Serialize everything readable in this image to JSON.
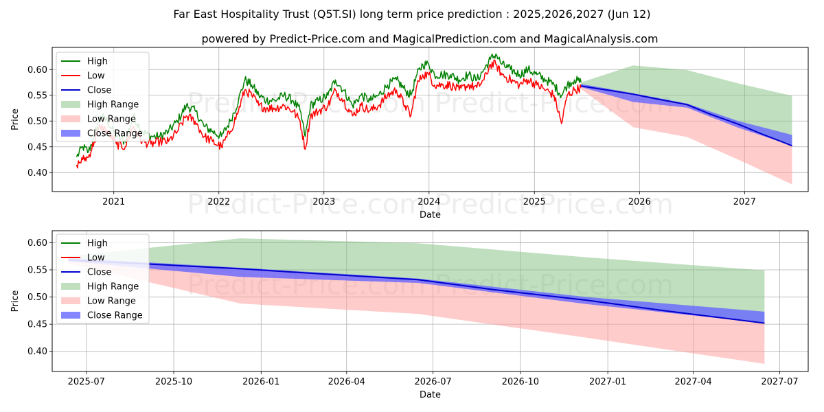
{
  "title": "Far East Hospitality Trust (Q5T.SI) long term price prediction : 2025,2026,2027 (Jun 12)",
  "subtitle": "powered by Predict-Price.com and MagicalPrediction.com and MagicalAnalysis.com",
  "watermark": "Predict-Price.com",
  "colors": {
    "high": "#008000",
    "low": "#ff0000",
    "close": "#0000cc",
    "high_range": "#80c080",
    "low_range": "#ff9a9a",
    "close_range": "#6666ff"
  },
  "chart_data": [
    {
      "type": "line",
      "xlabel": "Date",
      "ylabel": "Price",
      "xlim": [
        "2020-06-01",
        "2027-08-10"
      ],
      "ylim": [
        0.363,
        0.643
      ],
      "grid": true,
      "legend_position": "top-left",
      "x_ticks": [
        "2021",
        "2022",
        "2023",
        "2024",
        "2025",
        "2026",
        "2027"
      ],
      "y_ticks": [
        "0.40",
        "0.45",
        "0.50",
        "0.55",
        "0.60"
      ],
      "legend": [
        "High",
        "Low",
        "Close",
        "High Range",
        "Low Range",
        "Close Range"
      ],
      "series": [
        {
          "name": "High",
          "x": [
            "2020-08-25",
            "2020-09-15",
            "2020-10-05",
            "2020-10-25",
            "2020-11-15",
            "2020-12-10",
            "2021-01-10",
            "2021-02-10",
            "2021-03-10",
            "2021-04-10",
            "2021-05-10",
            "2021-06-10",
            "2021-07-10",
            "2021-08-10",
            "2021-09-10",
            "2021-10-10",
            "2021-11-10",
            "2021-12-10",
            "2022-01-10",
            "2022-02-10",
            "2022-03-10",
            "2022-04-01",
            "2022-04-25",
            "2022-05-20",
            "2022-06-15",
            "2022-07-15",
            "2022-08-15",
            "2022-09-15",
            "2022-10-10",
            "2022-10-28",
            "2022-11-15",
            "2022-12-15",
            "2023-01-15",
            "2023-02-10",
            "2023-03-10",
            "2023-04-10",
            "2023-05-10",
            "2023-06-10",
            "2023-07-10",
            "2023-08-10",
            "2023-09-10",
            "2023-10-10",
            "2023-10-30",
            "2023-11-20",
            "2023-12-10",
            "2023-12-31",
            "2024-01-20",
            "2024-02-15",
            "2024-03-15",
            "2024-04-15",
            "2024-05-15",
            "2024-06-15",
            "2024-07-10",
            "2024-08-01",
            "2024-08-20",
            "2024-09-10",
            "2024-10-10",
            "2024-11-10",
            "2024-12-10",
            "2025-01-10",
            "2025-02-10",
            "2025-03-10",
            "2025-04-05",
            "2025-04-25",
            "2025-05-20",
            "2025-06-12"
          ],
          "values": [
            0.43,
            0.45,
            0.44,
            0.47,
            0.51,
            0.5,
            0.47,
            0.46,
            0.51,
            0.48,
            0.47,
            0.47,
            0.48,
            0.5,
            0.53,
            0.52,
            0.49,
            0.48,
            0.47,
            0.5,
            0.54,
            0.58,
            0.57,
            0.55,
            0.54,
            0.54,
            0.55,
            0.54,
            0.52,
            0.47,
            0.53,
            0.54,
            0.55,
            0.58,
            0.56,
            0.53,
            0.55,
            0.54,
            0.55,
            0.57,
            0.58,
            0.56,
            0.55,
            0.59,
            0.61,
            0.61,
            0.59,
            0.59,
            0.59,
            0.58,
            0.59,
            0.58,
            0.6,
            0.62,
            0.63,
            0.61,
            0.6,
            0.59,
            0.6,
            0.59,
            0.58,
            0.57,
            0.55,
            0.57,
            0.58,
            0.575
          ]
        },
        {
          "name": "Low",
          "x": [
            "2020-08-25",
            "2020-09-15",
            "2020-10-05",
            "2020-10-25",
            "2020-11-15",
            "2020-12-10",
            "2021-01-10",
            "2021-02-10",
            "2021-03-10",
            "2021-04-10",
            "2021-05-10",
            "2021-06-10",
            "2021-07-10",
            "2021-08-10",
            "2021-09-10",
            "2021-10-10",
            "2021-11-10",
            "2021-12-10",
            "2022-01-10",
            "2022-02-10",
            "2022-03-10",
            "2022-04-01",
            "2022-04-25",
            "2022-05-20",
            "2022-06-15",
            "2022-07-15",
            "2022-08-15",
            "2022-09-15",
            "2022-10-10",
            "2022-10-28",
            "2022-11-15",
            "2022-12-15",
            "2023-01-15",
            "2023-02-10",
            "2023-03-10",
            "2023-04-10",
            "2023-05-10",
            "2023-06-10",
            "2023-07-10",
            "2023-08-10",
            "2023-09-10",
            "2023-10-10",
            "2023-10-30",
            "2023-11-20",
            "2023-12-10",
            "2023-12-31",
            "2024-01-20",
            "2024-02-15",
            "2024-03-15",
            "2024-04-15",
            "2024-05-15",
            "2024-06-15",
            "2024-07-10",
            "2024-08-01",
            "2024-08-20",
            "2024-09-10",
            "2024-10-10",
            "2024-11-10",
            "2024-12-10",
            "2025-01-10",
            "2025-02-10",
            "2025-03-10",
            "2025-04-05",
            "2025-04-25",
            "2025-05-20",
            "2025-06-12"
          ],
          "values": [
            0.415,
            0.425,
            0.43,
            0.46,
            0.49,
            0.48,
            0.455,
            0.45,
            0.49,
            0.46,
            0.455,
            0.46,
            0.46,
            0.48,
            0.51,
            0.5,
            0.47,
            0.46,
            0.45,
            0.48,
            0.52,
            0.56,
            0.55,
            0.53,
            0.525,
            0.525,
            0.53,
            0.52,
            0.5,
            0.445,
            0.51,
            0.52,
            0.53,
            0.56,
            0.54,
            0.51,
            0.53,
            0.52,
            0.53,
            0.55,
            0.56,
            0.53,
            0.51,
            0.57,
            0.59,
            0.59,
            0.57,
            0.57,
            0.57,
            0.56,
            0.57,
            0.565,
            0.58,
            0.61,
            0.61,
            0.59,
            0.58,
            0.57,
            0.58,
            0.57,
            0.56,
            0.55,
            0.495,
            0.55,
            0.56,
            0.565
          ]
        },
        {
          "name": "Close",
          "x": [
            "2025-06-12",
            "2025-09-01",
            "2025-12-10",
            "2026-03-01",
            "2026-06-15",
            "2026-09-01",
            "2026-12-10",
            "2027-03-01",
            "2027-06-15"
          ],
          "values": [
            0.568,
            0.561,
            0.552,
            0.543,
            0.532,
            0.514,
            0.494,
            0.475,
            0.452
          ]
        }
      ],
      "bands": [
        {
          "name": "High Range",
          "x": [
            "2025-06-12",
            "2025-12-10",
            "2026-06-15",
            "2026-12-10",
            "2027-06-15"
          ],
          "lower": [
            0.568,
            0.552,
            0.532,
            0.494,
            0.452
          ],
          "upper": [
            0.575,
            0.608,
            0.599,
            0.573,
            0.549
          ]
        },
        {
          "name": "Low Range",
          "x": [
            "2025-06-12",
            "2025-12-10",
            "2026-06-15",
            "2026-12-10",
            "2027-06-15"
          ],
          "lower": [
            0.562,
            0.488,
            0.469,
            0.425,
            0.377
          ],
          "upper": [
            0.568,
            0.552,
            0.532,
            0.494,
            0.452
          ]
        },
        {
          "name": "Close Range",
          "x": [
            "2025-06-12",
            "2025-12-10",
            "2026-06-15",
            "2026-12-10",
            "2027-06-15"
          ],
          "lower": [
            0.566,
            0.537,
            0.526,
            0.487,
            0.452
          ],
          "upper": [
            0.572,
            0.554,
            0.534,
            0.5,
            0.473
          ]
        }
      ]
    },
    {
      "type": "line",
      "xlabel": "Date",
      "ylabel": "Price",
      "xlim": [
        "2025-05-26",
        "2027-07-31"
      ],
      "ylim": [
        0.363,
        0.622
      ],
      "grid": true,
      "legend_position": "top-left",
      "x_ticks": [
        "2025-07",
        "2025-10",
        "2026-01",
        "2026-04",
        "2026-07",
        "2026-10",
        "2027-01",
        "2027-04",
        "2027-07"
      ],
      "y_ticks": [
        "0.40",
        "0.45",
        "0.50",
        "0.55",
        "0.60"
      ],
      "legend": [
        "High",
        "Low",
        "Close",
        "High Range",
        "Low Range",
        "Close Range"
      ],
      "series": [
        {
          "name": "Close",
          "x": [
            "2025-06-12",
            "2025-09-01",
            "2025-12-10",
            "2026-03-01",
            "2026-06-15",
            "2026-09-01",
            "2026-12-10",
            "2027-03-01",
            "2027-06-15"
          ],
          "values": [
            0.568,
            0.561,
            0.552,
            0.543,
            0.532,
            0.514,
            0.494,
            0.475,
            0.452
          ]
        }
      ],
      "bands": [
        {
          "name": "High Range",
          "x": [
            "2025-06-12",
            "2025-12-10",
            "2026-06-15",
            "2026-12-10",
            "2027-06-15"
          ],
          "lower": [
            0.568,
            0.552,
            0.532,
            0.494,
            0.452
          ],
          "upper": [
            0.575,
            0.608,
            0.599,
            0.573,
            0.549
          ]
        },
        {
          "name": "Low Range",
          "x": [
            "2025-06-12",
            "2025-12-10",
            "2026-06-15",
            "2026-12-10",
            "2027-06-15"
          ],
          "lower": [
            0.562,
            0.488,
            0.469,
            0.425,
            0.377
          ],
          "upper": [
            0.568,
            0.552,
            0.532,
            0.494,
            0.452
          ]
        },
        {
          "name": "Close Range",
          "x": [
            "2025-06-12",
            "2025-12-10",
            "2026-06-15",
            "2026-12-10",
            "2027-06-15"
          ],
          "lower": [
            0.566,
            0.537,
            0.526,
            0.487,
            0.452
          ],
          "upper": [
            0.572,
            0.554,
            0.534,
            0.5,
            0.473
          ]
        }
      ]
    }
  ]
}
